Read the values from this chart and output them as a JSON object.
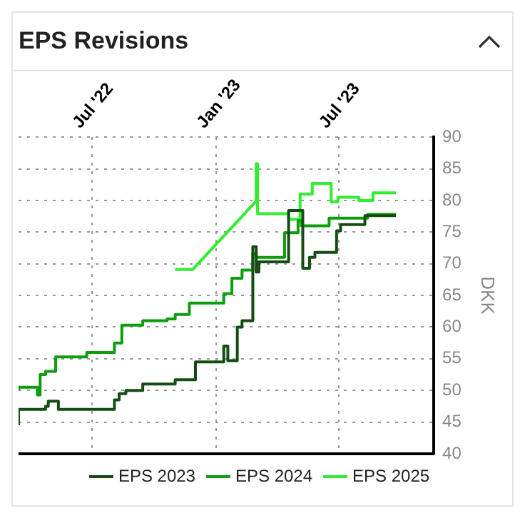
{
  "chart_data": {
    "type": "step",
    "title": "EPS Revisions",
    "ylabel": "DKK",
    "xlim": [
      "2022-03-14",
      "2023-11-19"
    ],
    "xticks": [
      {
        "value": "2022-07-01",
        "label": "Jul '22"
      },
      {
        "value": "2023-01-01",
        "label": "Jan '23"
      },
      {
        "value": "2023-07-01",
        "label": "Jul '23"
      }
    ],
    "ylim": [
      40,
      90
    ],
    "yticks": [
      40,
      45,
      50,
      55,
      60,
      65,
      70,
      75,
      80,
      85,
      90
    ],
    "grid": true,
    "legend": "bottom",
    "marker": "none",
    "series": [
      {
        "name": "EPS 2023",
        "color": "#134d13",
        "x": [
          "2022-03-14",
          "2022-04-23",
          "2022-04-27",
          "2022-05-12",
          "2022-08-03",
          "2022-08-10",
          "2022-08-20",
          "2022-09-14",
          "2022-11-01",
          "2022-12-01",
          "2023-01-12",
          "2023-01-18",
          "2023-02-01",
          "2023-02-08",
          "2023-02-24",
          "2023-03-01",
          "2023-03-05",
          "2023-04-18",
          "2023-05-02",
          "2023-05-09",
          "2023-05-19",
          "2023-05-27",
          "2023-06-28",
          "2023-07-04",
          "2023-08-09",
          "2023-08-21",
          "2023-09-24"
        ],
        "values": [
          44.5,
          47,
          47.5,
          48.3,
          47,
          48.5,
          49.5,
          50,
          51,
          51.7,
          54.5,
          57,
          54.7,
          60,
          61,
          72.7,
          68.7,
          70.3,
          78.4,
          78.4,
          69.3,
          71,
          71.8,
          75.2,
          76.2,
          77.6,
          77.6
        ]
      },
      {
        "name": "EPS 2024",
        "color": "#0d9e0d",
        "x": [
          "2022-03-14",
          "2022-04-11",
          "2022-04-15",
          "2022-04-23",
          "2022-05-08",
          "2022-06-23",
          "2022-08-03",
          "2022-08-14",
          "2022-09-14",
          "2022-10-20",
          "2022-11-01",
          "2022-11-22",
          "2023-01-12",
          "2023-01-24",
          "2023-02-08",
          "2023-02-24",
          "2023-03-01",
          "2023-04-12",
          "2023-05-02",
          "2023-05-07",
          "2023-06-17",
          "2023-08-13",
          "2023-08-21",
          "2023-09-24"
        ],
        "values": [
          50,
          50.5,
          49.3,
          52.5,
          53,
          55.3,
          56,
          57.5,
          60.3,
          61,
          61.3,
          62,
          63.8,
          65.3,
          67.7,
          69,
          71.6,
          71,
          74.9,
          76.8,
          76,
          77.2,
          77.8,
          77.8
        ]
      },
      {
        "name": "EPS 2025",
        "color": "#2eee2e",
        "type": "line",
        "x": [
          "2022-11-01",
          "2022-11-27",
          "2023-03-01",
          "2023-03-01",
          "2023-03-03",
          "2023-03-03",
          "2023-04-18",
          "2023-04-18",
          "2023-05-05",
          "2023-05-05",
          "2023-05-23",
          "2023-05-23",
          "2023-06-20",
          "2023-06-20",
          "2023-06-30",
          "2023-06-30",
          "2023-07-31",
          "2023-07-31",
          "2023-08-21",
          "2023-08-21",
          "2023-09-24"
        ],
        "values": [
          69.1,
          69.1,
          79.9,
          85.8,
          85.8,
          77.9,
          77.9,
          77,
          77,
          81,
          81,
          82.7,
          82.7,
          79.8,
          79.8,
          80.5,
          80.5,
          80,
          80,
          81.2,
          81.2
        ]
      }
    ]
  }
}
